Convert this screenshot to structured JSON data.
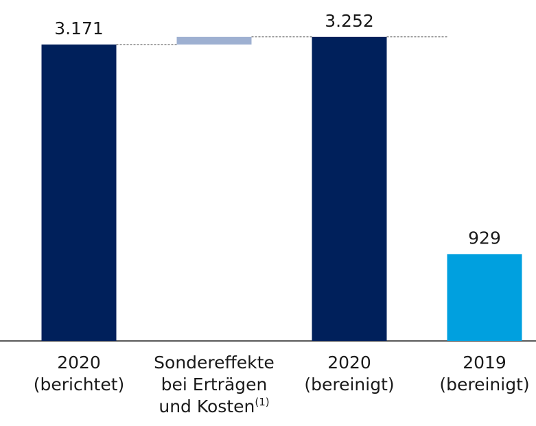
{
  "chart_data": {
    "type": "waterfall",
    "categories": [
      [
        "2020",
        "(berichtet)"
      ],
      [
        "Sondereffekte",
        "bei Erträgen",
        "und Kosten"
      ],
      [
        "2020",
        "(bereinigt)"
      ],
      [
        "2019",
        "(bereinigt)"
      ]
    ],
    "category_superscripts": [
      null,
      "(1)",
      null,
      null
    ],
    "values": [
      3171,
      81,
      3252,
      929
    ],
    "value_labels": [
      "3.171",
      null,
      "3.252",
      "929"
    ],
    "totals": [
      true,
      false,
      true,
      true
    ],
    "colors": [
      "#00205b",
      "#9eb0d1",
      "#00205b",
      "#00a0df"
    ],
    "connectors": true,
    "ylim": [
      0,
      3500
    ]
  }
}
